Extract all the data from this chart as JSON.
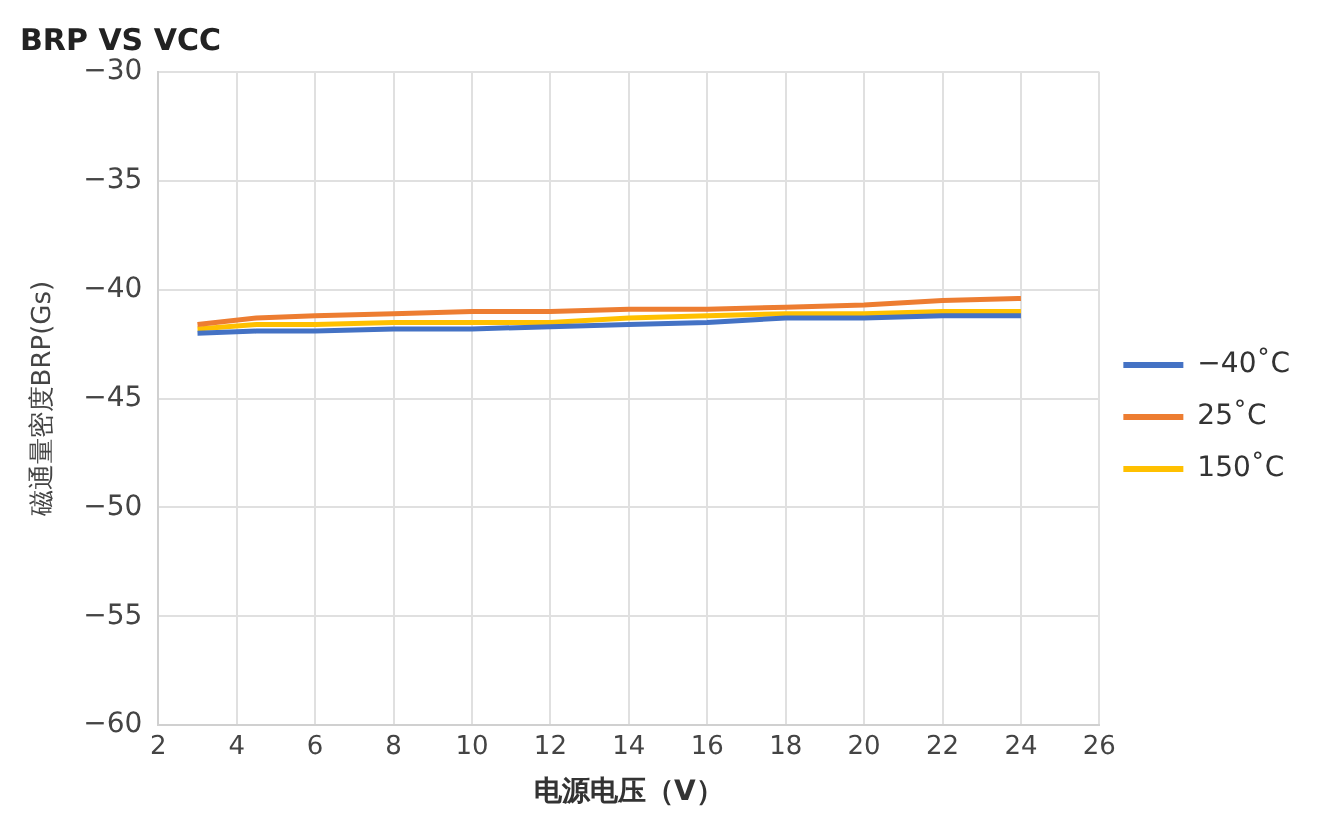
{
  "chart_data": {
    "type": "line",
    "title": "BRP VS VCC",
    "xlabel": "电源电压（V）",
    "ylabel": "磁通量密度BRP(Gs)",
    "x": [
      3,
      4.5,
      6,
      8,
      10,
      12,
      14,
      16,
      18,
      20,
      22,
      24
    ],
    "series": [
      {
        "name": "−40˚C",
        "color": "#4472c4",
        "values": [
          -42.0,
          -41.9,
          -41.9,
          -41.8,
          -41.8,
          -41.7,
          -41.6,
          -41.5,
          -41.3,
          -41.3,
          -41.2,
          -41.2
        ]
      },
      {
        "name": "25˚C",
        "color": "#ed7d31",
        "values": [
          -41.6,
          -41.3,
          -41.2,
          -41.1,
          -41.0,
          -41.0,
          -40.9,
          -40.9,
          -40.8,
          -40.7,
          -40.5,
          -40.4
        ]
      },
      {
        "name": "150˚C",
        "color": "#ffc000",
        "values": [
          -41.8,
          -41.6,
          -41.6,
          -41.5,
          -41.5,
          -41.5,
          -41.3,
          -41.2,
          -41.1,
          -41.1,
          -41.0,
          -41.0
        ]
      }
    ],
    "xlim": [
      2,
      26
    ],
    "xticks": [
      2,
      4,
      6,
      8,
      10,
      12,
      14,
      16,
      18,
      20,
      22,
      24,
      26
    ],
    "ylim": [
      -60,
      -30
    ],
    "yticks": [
      -60,
      -55,
      -50,
      -45,
      -40,
      -35,
      -30
    ],
    "grid": true,
    "legend": "right",
    "marker": "none",
    "line_style": "solid"
  }
}
